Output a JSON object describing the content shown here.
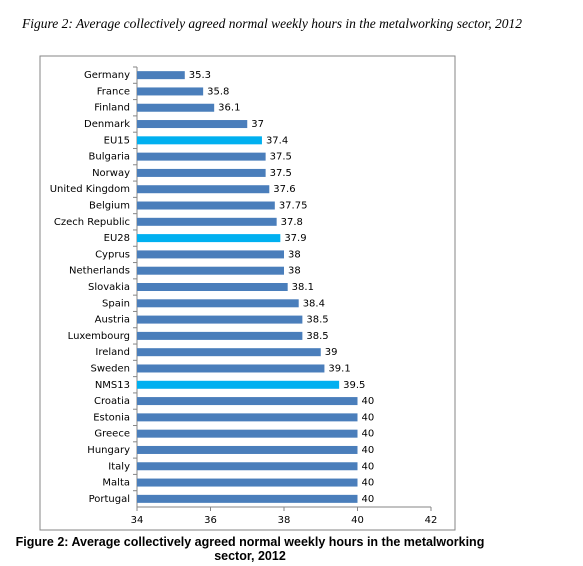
{
  "chart_data": {
    "type": "bar",
    "orientation": "horizontal",
    "title": "Figure 2: Average collectively agreed normal weekly hours in the metalworking sector, 2012",
    "caption": "Figure 2: Average collectively agreed normal weekly hours in the metalworking sector, 2012",
    "categories": [
      "Germany",
      "France",
      "Finland",
      "Denmark",
      "EU15",
      "Bulgaria",
      "Norway",
      "United Kingdom",
      "Belgium",
      "Czech Republic",
      "EU28",
      "Cyprus",
      "Netherlands",
      "Slovakia",
      "Spain",
      "Austria",
      "Luxembourg",
      "Ireland",
      "Sweden",
      "NMS13",
      "Croatia",
      "Estonia",
      "Greece",
      "Hungary",
      "Italy",
      "Malta",
      "Portugal"
    ],
    "values": [
      35.3,
      35.8,
      36.1,
      37,
      37.4,
      37.5,
      37.5,
      37.6,
      37.75,
      37.8,
      37.9,
      38,
      38,
      38.1,
      38.4,
      38.5,
      38.5,
      39,
      39.1,
      39.5,
      40,
      40,
      40,
      40,
      40,
      40,
      40
    ],
    "colors": [
      "#4a7ebb",
      "#4a7ebb",
      "#4a7ebb",
      "#4a7ebb",
      "#00b0f0",
      "#4a7ebb",
      "#4a7ebb",
      "#4a7ebb",
      "#4a7ebb",
      "#4a7ebb",
      "#00b0f0",
      "#4a7ebb",
      "#4a7ebb",
      "#4a7ebb",
      "#4a7ebb",
      "#4a7ebb",
      "#4a7ebb",
      "#4a7ebb",
      "#4a7ebb",
      "#00b0f0",
      "#4a7ebb",
      "#4a7ebb",
      "#4a7ebb",
      "#4a7ebb",
      "#4a7ebb",
      "#4a7ebb",
      "#4a7ebb"
    ],
    "xlim": [
      34,
      42
    ],
    "xticks": [
      34,
      36,
      38,
      40,
      42
    ],
    "grid": false
  }
}
